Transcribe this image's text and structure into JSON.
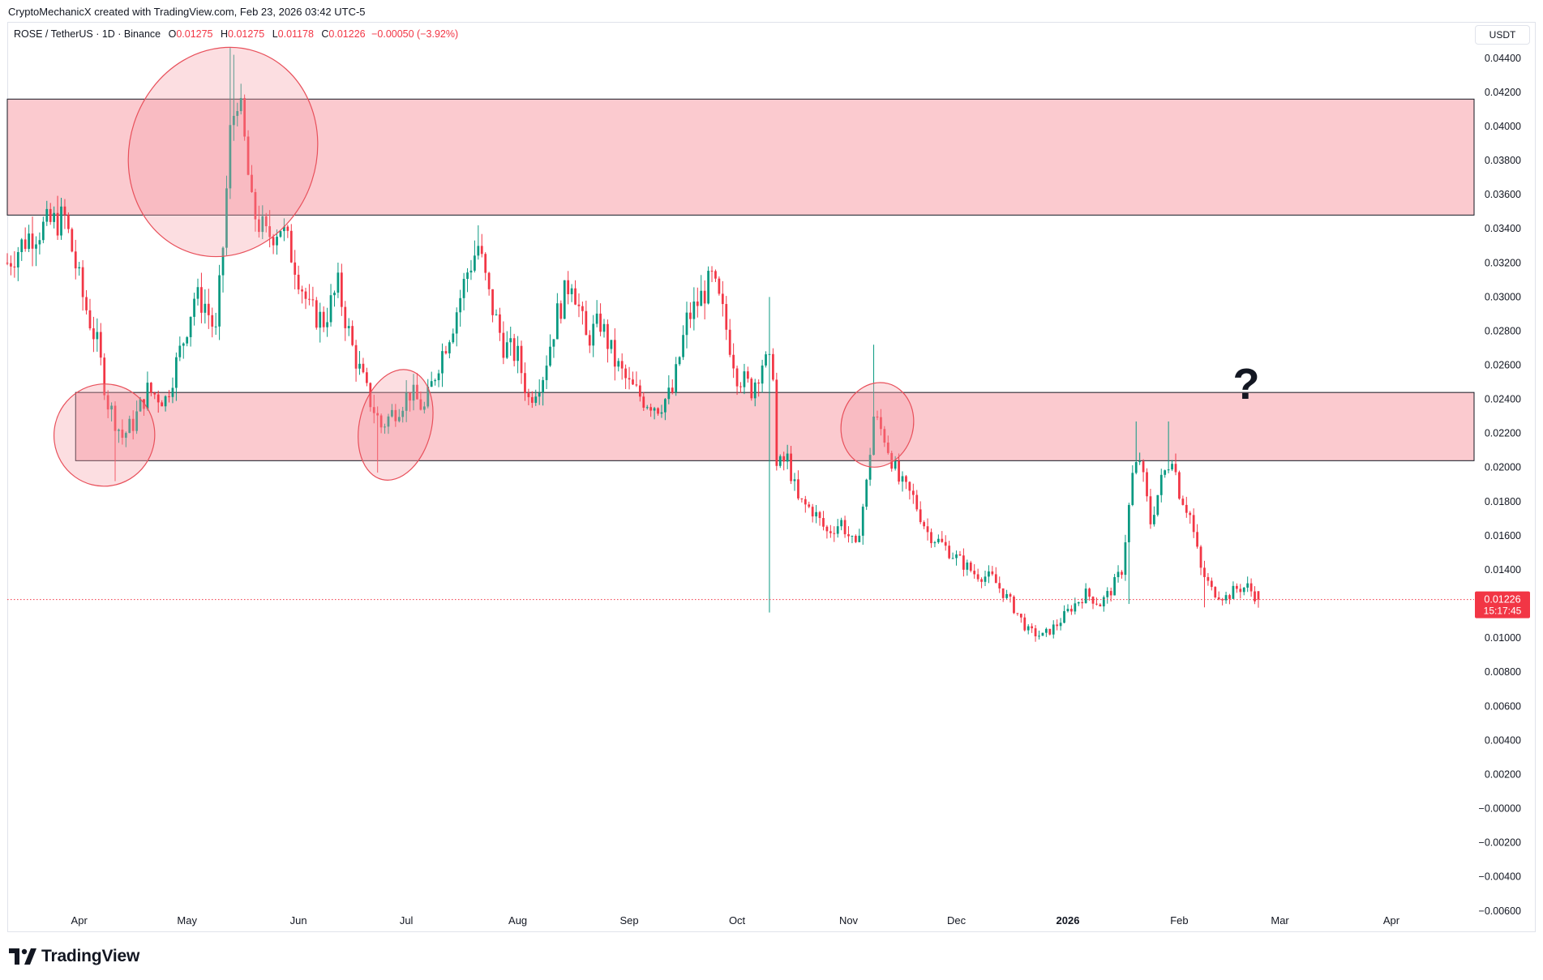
{
  "header": {
    "attribution": "CryptoMechanicX created with TradingView.com, Feb 23, 2026 03:42 UTC-5"
  },
  "legend": {
    "symbol": "ROSE / TetherUS · 1D · Binance",
    "o_label": "O",
    "o": "0.01275",
    "h_label": "H",
    "h": "0.01275",
    "l_label": "L",
    "l": "0.01178",
    "c_label": "C",
    "c": "0.01226",
    "change": "−0.00050 (−3.92%)"
  },
  "price_axis": {
    "unit": "USDT",
    "labels": [
      "0.04400",
      "0.04200",
      "0.04000",
      "0.03800",
      "0.03600",
      "0.03400",
      "0.03200",
      "0.03000",
      "0.02800",
      "0.02600",
      "0.02400",
      "0.02200",
      "0.02000",
      "0.01800",
      "0.01600",
      "0.01400",
      "0.01200",
      "0.01000",
      "0.00800",
      "0.00600",
      "0.00400",
      "0.00200",
      "−0.00000",
      "−0.00200",
      "−0.00400",
      "−0.00600"
    ]
  },
  "current_price": {
    "value": "0.01226",
    "countdown": "15:17:45"
  },
  "annotation": {
    "mark": "?"
  },
  "brand": {
    "name": "TradingView"
  },
  "colors": {
    "up": "#089981",
    "down": "#f23645",
    "zone_fill": "#fbc7cc",
    "circle_fill": "#f7a1a8",
    "circle_stroke": "#e8505b"
  },
  "chart_data": {
    "type": "candlestick",
    "title": "ROSE / TetherUS · 1D · Binance",
    "interval": "1D",
    "y_unit": "USDT",
    "ylim": [
      -0.0062,
      0.0457
    ],
    "x_ticks": [
      {
        "label": "Apr",
        "date": "2025-04-01"
      },
      {
        "label": "May",
        "date": "2025-05-01"
      },
      {
        "label": "Jun",
        "date": "2025-06-01"
      },
      {
        "label": "Jul",
        "date": "2025-07-01"
      },
      {
        "label": "Aug",
        "date": "2025-08-01"
      },
      {
        "label": "Sep",
        "date": "2025-09-01"
      },
      {
        "label": "Oct",
        "date": "2025-10-01"
      },
      {
        "label": "Nov",
        "date": "2025-11-01"
      },
      {
        "label": "Dec",
        "date": "2025-12-01"
      },
      {
        "label": "2026",
        "date": "2026-01-01",
        "bold": true
      },
      {
        "label": "Feb",
        "date": "2026-02-01"
      },
      {
        "label": "Mar",
        "date": "2026-03-01"
      },
      {
        "label": "Apr",
        "date": "2026-04-01"
      }
    ],
    "xlim": [
      "2025-03-12",
      "2026-04-24"
    ],
    "current_price": 0.01226,
    "zones": [
      {
        "name": "resistance",
        "from": "2025-03-12",
        "to": "2026-04-24",
        "low": 0.0348,
        "high": 0.0416
      },
      {
        "name": "support-resistance",
        "from": "2025-03-31",
        "to": "2026-04-24",
        "low": 0.0204,
        "high": 0.0244
      }
    ],
    "ellipses": [
      {
        "center_date": "2025-04-08",
        "center_price": 0.0219,
        "rx_days": 14,
        "ry_price": 0.003
      },
      {
        "center_date": "2025-05-11",
        "center_price": 0.0385,
        "rx_days": 26,
        "ry_price": 0.0062
      },
      {
        "center_date": "2025-06-28",
        "center_price": 0.0225,
        "rx_days": 10,
        "ry_price": 0.0033
      },
      {
        "center_date": "2025-11-09",
        "center_price": 0.0225,
        "rx_days": 10,
        "ry_price": 0.0025
      }
    ],
    "anchors": [
      [
        "2025-03-12",
        0.032
      ],
      [
        "2025-03-18",
        0.0336
      ],
      [
        "2025-03-24",
        0.0343
      ],
      [
        "2025-03-28",
        0.0346
      ],
      [
        "2025-04-02",
        0.03
      ],
      [
        "2025-04-06",
        0.0272
      ],
      [
        "2025-04-09",
        0.0238
      ],
      [
        "2025-04-13",
        0.0218
      ],
      [
        "2025-04-16",
        0.0226
      ],
      [
        "2025-04-20",
        0.0245
      ],
      [
        "2025-04-25",
        0.024
      ],
      [
        "2025-04-30",
        0.0275
      ],
      [
        "2025-05-03",
        0.03
      ],
      [
        "2025-05-06",
        0.0296
      ],
      [
        "2025-05-09",
        0.0278
      ],
      [
        "2025-05-11",
        0.033
      ],
      [
        "2025-05-13",
        0.0395
      ],
      [
        "2025-05-15",
        0.042
      ],
      [
        "2025-05-17",
        0.039
      ],
      [
        "2025-05-19",
        0.0352
      ],
      [
        "2025-05-23",
        0.0335
      ],
      [
        "2025-05-27",
        0.0342
      ],
      [
        "2025-05-31",
        0.032
      ],
      [
        "2025-06-04",
        0.0292
      ],
      [
        "2025-06-08",
        0.0286
      ],
      [
        "2025-06-12",
        0.0306
      ],
      [
        "2025-06-16",
        0.027
      ],
      [
        "2025-06-20",
        0.0244
      ],
      [
        "2025-06-24",
        0.0224
      ],
      [
        "2025-06-28",
        0.0234
      ],
      [
        "2025-07-02",
        0.0244
      ],
      [
        "2025-07-06",
        0.0234
      ],
      [
        "2025-07-10",
        0.0262
      ],
      [
        "2025-07-14",
        0.0285
      ],
      [
        "2025-07-18",
        0.0315
      ],
      [
        "2025-07-21",
        0.033
      ],
      [
        "2025-07-24",
        0.03
      ],
      [
        "2025-07-28",
        0.0272
      ],
      [
        "2025-08-01",
        0.0265
      ],
      [
        "2025-08-04",
        0.024
      ],
      [
        "2025-08-08",
        0.0255
      ],
      [
        "2025-08-12",
        0.029
      ],
      [
        "2025-08-16",
        0.0312
      ],
      [
        "2025-08-20",
        0.0275
      ],
      [
        "2025-08-24",
        0.0285
      ],
      [
        "2025-08-28",
        0.0262
      ],
      [
        "2025-09-01",
        0.0248
      ],
      [
        "2025-09-05",
        0.024
      ],
      [
        "2025-09-09",
        0.0236
      ],
      [
        "2025-09-13",
        0.0244
      ],
      [
        "2025-09-17",
        0.0286
      ],
      [
        "2025-09-21",
        0.03
      ],
      [
        "2025-09-24",
        0.031
      ],
      [
        "2025-09-27",
        0.029
      ],
      [
        "2025-10-01",
        0.0255
      ],
      [
        "2025-10-05",
        0.0246
      ],
      [
        "2025-10-08",
        0.0262
      ],
      [
        "2025-10-11",
        0.0258
      ],
      [
        "2025-10-12",
        0.02
      ],
      [
        "2025-10-15",
        0.0205
      ],
      [
        "2025-10-18",
        0.018
      ],
      [
        "2025-10-22",
        0.0175
      ],
      [
        "2025-10-26",
        0.0162
      ],
      [
        "2025-10-30",
        0.0168
      ],
      [
        "2025-11-03",
        0.0152
      ],
      [
        "2025-11-06",
        0.019
      ],
      [
        "2025-11-08",
        0.023
      ],
      [
        "2025-11-11",
        0.0218
      ],
      [
        "2025-11-15",
        0.0192
      ],
      [
        "2025-11-19",
        0.0182
      ],
      [
        "2025-11-23",
        0.0162
      ],
      [
        "2025-11-27",
        0.0155
      ],
      [
        "2025-12-01",
        0.0147
      ],
      [
        "2025-12-06",
        0.0138
      ],
      [
        "2025-12-11",
        0.0135
      ],
      [
        "2025-12-16",
        0.0121
      ],
      [
        "2025-12-21",
        0.0104
      ],
      [
        "2025-12-25",
        0.0101
      ],
      [
        "2025-12-29",
        0.0108
      ],
      [
        "2026-01-02",
        0.0118
      ],
      [
        "2026-01-06",
        0.0126
      ],
      [
        "2026-01-10",
        0.012
      ],
      [
        "2026-01-13",
        0.0128
      ],
      [
        "2026-01-16",
        0.014
      ],
      [
        "2026-01-19",
        0.0195
      ],
      [
        "2026-01-21",
        0.0205
      ],
      [
        "2026-01-24",
        0.0168
      ],
      [
        "2026-01-27",
        0.0192
      ],
      [
        "2026-01-30",
        0.0208
      ],
      [
        "2026-02-01",
        0.0186
      ],
      [
        "2026-02-04",
        0.0172
      ],
      [
        "2026-02-07",
        0.014
      ],
      [
        "2026-02-10",
        0.0128
      ],
      [
        "2026-02-14",
        0.0124
      ],
      [
        "2026-02-17",
        0.0129
      ],
      [
        "2026-02-20",
        0.013
      ],
      [
        "2026-02-23",
        0.01226
      ]
    ]
  }
}
